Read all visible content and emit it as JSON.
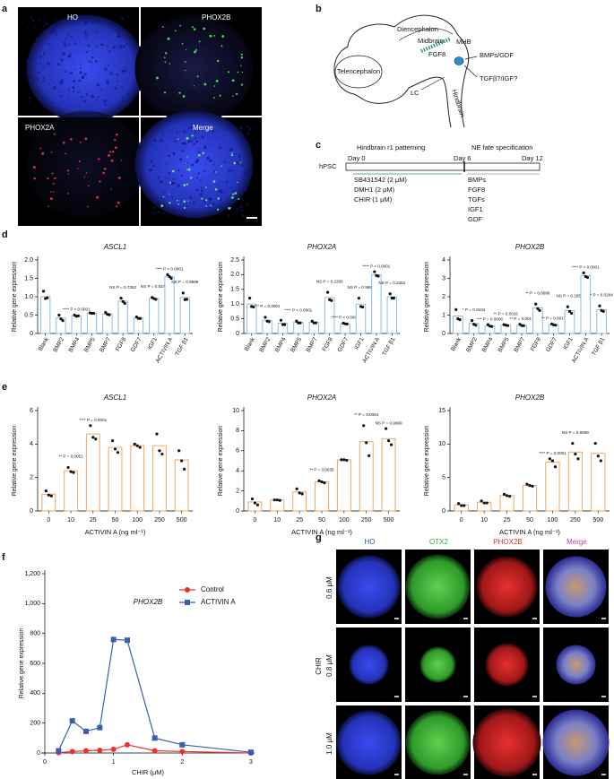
{
  "panel_labels": [
    "a",
    "b",
    "c",
    "d",
    "e",
    "f",
    "g"
  ],
  "panel_a": {
    "channels": [
      "HO",
      "PHOX2B",
      "PHOX2A",
      "Merge"
    ]
  },
  "panel_b": {
    "diencephalon": "Diencephalon",
    "midbrain": "Midbrain",
    "mhb": "MHB",
    "fgf8": "FGF8",
    "telencephalon": "Telencephalon",
    "bmps": "BMPs/GDF",
    "tgf": "TGFβ?/IGF?",
    "lc": "LC",
    "hindbrain": "Hindbrain"
  },
  "panel_c": {
    "phase1": "Hindbrain r1 patterning",
    "phase2": "NE fate specification",
    "day0": "Day 0",
    "day6": "Day 6",
    "day12": "Day 12",
    "start": "hPSC",
    "factors1": [
      "SB431542 (2 μM)",
      "DMH1 (2 μM)",
      "CHIR (1 μM)"
    ],
    "factors2": [
      "BMPs",
      "FGF8",
      "TGFs",
      "IGF1",
      "GDF"
    ]
  },
  "panel_g": {
    "channels": [
      "HO",
      "OTX2",
      "PHOX2B",
      "Merge"
    ],
    "rows": [
      "0.6 μM",
      "0.8 μM",
      "1.0 μM"
    ],
    "row_title": "CHIR"
  },
  "chart_data": [
    {
      "type": "bar",
      "title": "ASCL1",
      "ylabel": "Relative gene expression",
      "color": "#8dbde6",
      "categories": [
        "Blank",
        "BMP2",
        "BMP4",
        "BMP5",
        "BMP7",
        "FGF8",
        "GDF7",
        "IGF1",
        "ACTIVIN A",
        "TGF β1"
      ],
      "values": [
        1.0,
        0.42,
        0.48,
        0.55,
        0.53,
        0.88,
        0.42,
        0.95,
        1.55,
        0.98
      ],
      "points": [
        [
          1.15,
          0.95,
          0.97
        ],
        [
          0.5,
          0.4,
          0.35
        ],
        [
          0.5,
          0.47,
          0.48
        ],
        [
          0.56,
          0.55,
          0.55
        ],
        [
          0.57,
          0.52,
          0.51
        ],
        [
          0.96,
          0.87,
          0.82
        ],
        [
          0.45,
          0.41,
          0.41
        ],
        [
          0.98,
          0.95,
          0.93
        ],
        [
          1.6,
          1.55,
          1.5
        ],
        [
          1.1,
          0.92,
          0.93
        ]
      ],
      "notes": [
        null,
        null,
        "**** P < 0.0001",
        null,
        null,
        "NS P = 0.7352",
        null,
        "NS P = 0.9378",
        "**** P < 0.0001",
        "NS P = 0.9999"
      ],
      "ylim": [
        0,
        2
      ],
      "yticks": [
        0,
        0.5,
        {
          "value": 1,
          "label": "1.0"
        },
        1.5,
        {
          "value": 2,
          "label": "2.0"
        }
      ]
    },
    {
      "type": "bar",
      "title": "PHOX2A",
      "ylabel": "Relative gene expression",
      "color": "#8dbde6",
      "categories": [
        "Blank",
        "BMP2",
        "BMP4",
        "BMP5",
        "BMP7",
        "FGF8",
        "GDF7",
        "IGF1",
        "ACTIVIN A",
        "TGF β1"
      ],
      "values": [
        1.0,
        0.45,
        0.35,
        0.38,
        0.38,
        1.22,
        0.33,
        1.0,
        2.0,
        1.25
      ],
      "points": [
        [
          1.2,
          0.92,
          0.9
        ],
        [
          0.55,
          0.42,
          0.4
        ],
        [
          0.45,
          0.3,
          0.3
        ],
        [
          0.42,
          0.36,
          0.36
        ],
        [
          0.42,
          0.36,
          0.36
        ],
        [
          1.4,
          1.15,
          1.12
        ],
        [
          0.35,
          0.33,
          0.32
        ],
        [
          1.2,
          0.92,
          0.9
        ],
        [
          2.1,
          1.97,
          1.95
        ],
        [
          1.35,
          1.2,
          1.2
        ]
      ],
      "notes": [
        null,
        "*** P = 0.0001",
        null,
        "**** P < 0.0001",
        null,
        "NS P = 0.2295",
        "**** P < 0.0001",
        "NS P = 0.9999",
        "**** P < 0.0001",
        "NS P = 0.2252"
      ],
      "ylim": [
        0,
        2.5
      ],
      "yticks": [
        0,
        0.5,
        {
          "value": 1,
          "label": "1.0"
        },
        1.5,
        {
          "value": 2,
          "label": "2.0"
        },
        2.5
      ]
    },
    {
      "type": "bar",
      "title": "PHOX2B",
      "ylabel": "Relative gene expression",
      "color": "#8dbde6",
      "categories": [
        "Blank",
        "BMP2",
        "BMP4",
        "BMP5",
        "BMP7",
        "FGF8",
        "GDF7",
        "IGF1",
        "ACTIVIN A",
        "TGF β1"
      ],
      "values": [
        0.95,
        0.55,
        0.42,
        0.45,
        0.45,
        1.4,
        0.48,
        1.25,
        3.15,
        1.3
      ],
      "points": [
        [
          1.3,
          0.8,
          0.75
        ],
        [
          0.7,
          0.5,
          0.45
        ],
        [
          0.48,
          0.4,
          0.38
        ],
        [
          0.48,
          0.45,
          0.43
        ],
        [
          0.5,
          0.43,
          0.42
        ],
        [
          1.6,
          1.35,
          1.25
        ],
        [
          0.52,
          0.47,
          0.45
        ],
        [
          1.45,
          1.2,
          1.1
        ],
        [
          3.3,
          3.1,
          3.05
        ],
        [
          1.5,
          1.25,
          1.2
        ]
      ],
      "notes": [
        null,
        "* P = 0.0104",
        "*** P = 0.0006",
        "** P = 0.0015",
        "** P = 0.0017",
        "** P = 0.0086",
        "** P = 0.0017",
        "NS P = 0.1859",
        "**** P < 0.0001",
        "* P = 0.0284"
      ],
      "ylim": [
        0,
        4
      ],
      "yticks": [
        0,
        1,
        2,
        3,
        4
      ]
    },
    {
      "type": "bar",
      "title": "ASCL1",
      "ylabel": "Relative gene expression",
      "xlabel": "ACTIVIN A (ng ml⁻¹)",
      "color": "#f2a766",
      "categories": [
        "0",
        "10",
        "25",
        "50",
        "100",
        "250",
        "500"
      ],
      "values": [
        1.0,
        2.4,
        4.6,
        3.8,
        3.9,
        3.9,
        3.05
      ],
      "points": [
        [
          1.2,
          0.95,
          0.9
        ],
        [
          2.6,
          2.35,
          2.3
        ],
        [
          5.1,
          4.4,
          4.3
        ],
        [
          4.2,
          3.7,
          3.5
        ],
        [
          4.0,
          3.9,
          3.8
        ],
        [
          4.6,
          3.6,
          3.4
        ],
        [
          3.6,
          3.0,
          2.5
        ]
      ],
      "notes": [
        null,
        "** P = 0.0051",
        "**** P = 0.0001",
        null,
        null,
        null,
        null
      ],
      "ylim": [
        0,
        6
      ],
      "yticks": [
        0,
        2,
        4,
        6
      ]
    },
    {
      "type": "bar",
      "title": "PHOX2A",
      "ylabel": "Relative gene expression",
      "xlabel": "ACTIVIN A (ng ml⁻¹)",
      "color": "#f2a766",
      "categories": [
        "0",
        "10",
        "25",
        "50",
        "100",
        "250",
        "500"
      ],
      "values": [
        0.9,
        1.1,
        1.9,
        2.9,
        5.1,
        6.9,
        7.2
      ],
      "points": [
        [
          1.2,
          0.8,
          0.6
        ],
        [
          1.1,
          1.1,
          1.05
        ],
        [
          2.2,
          1.8,
          1.7
        ],
        [
          3.0,
          2.9,
          2.8
        ],
        [
          5.1,
          5.1,
          5.05
        ],
        [
          8.5,
          6.8,
          5.5
        ],
        [
          8.2,
          7.0,
          6.6
        ]
      ],
      "notes": [
        null,
        null,
        null,
        "** P = 0.0035",
        null,
        "** P = 0.0064",
        "NS P = 0.9999"
      ],
      "ylim": [
        0,
        10
      ],
      "yticks": [
        0,
        2,
        4,
        6,
        8,
        10
      ]
    },
    {
      "type": "bar",
      "title": "PHOX2B",
      "ylabel": "Relative gene expression",
      "xlabel": "ACTIVIN A (ng ml⁻¹)",
      "color": "#f2a766",
      "categories": [
        "0",
        "10",
        "25",
        "50",
        "100",
        "250",
        "500"
      ],
      "values": [
        0.9,
        1.3,
        2.3,
        3.8,
        7.3,
        8.8,
        8.6
      ],
      "points": [
        [
          1.1,
          0.8,
          0.8
        ],
        [
          1.5,
          1.2,
          1.2
        ],
        [
          2.5,
          2.3,
          2.2
        ],
        [
          4.0,
          3.8,
          3.7
        ],
        [
          7.8,
          7.5,
          6.6
        ],
        [
          10.1,
          8.5,
          7.8
        ],
        [
          10.1,
          8.2,
          7.5
        ]
      ],
      "notes": [
        null,
        null,
        null,
        null,
        "**** P = 0.0001",
        "NS P = 0.9999",
        null
      ],
      "ylim": [
        0,
        15
      ],
      "yticks": [
        0,
        5,
        10,
        15
      ]
    },
    {
      "type": "line",
      "title": "PHOX2B",
      "xlabel": "CHIR (μM)",
      "ylabel": "Relative gene expression",
      "x": [
        0.2,
        0.4,
        0.6,
        0.8,
        1.0,
        1.2,
        1.6,
        2.0,
        3.0
      ],
      "series": [
        {
          "name": "Control",
          "color": "#e8312f",
          "marker": "circle",
          "values": [
            2,
            10,
            15,
            18,
            25,
            55,
            15,
            10,
            0
          ]
        },
        {
          "name": "ACTIVIN A",
          "color": "#3a5fb0",
          "marker": "square",
          "values": [
            15,
            215,
            145,
            170,
            760,
            755,
            100,
            55,
            5
          ]
        }
      ],
      "xlim": [
        0,
        3
      ],
      "xticks": [
        0,
        1,
        2,
        3
      ],
      "ylim": [
        0,
        1200
      ],
      "yticks": [
        0,
        200,
        400,
        600,
        800,
        {
          "value": 1000,
          "label": "1,000"
        },
        {
          "value": 1200,
          "label": "1,200"
        }
      ],
      "legend": "upper right"
    }
  ]
}
